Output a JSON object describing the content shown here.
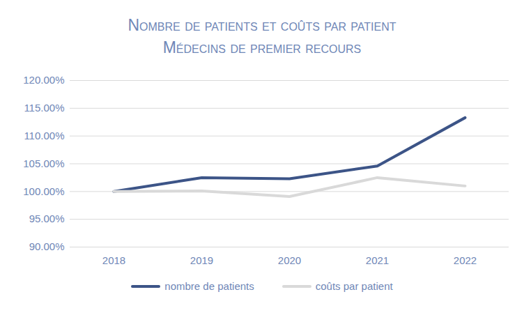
{
  "chart_data": {
    "type": "line",
    "title": "Nombre de patients et coûts par patient",
    "subtitle": "Médecins de premier recours",
    "categories": [
      "2018",
      "2019",
      "2020",
      "2021",
      "2022"
    ],
    "series": [
      {
        "name": "nombre de patients",
        "color": "#3c5487",
        "values": [
          100,
          102.5,
          102.3,
          104.6,
          113.3
        ]
      },
      {
        "name": "coûts par patient",
        "color": "#d9d9d9",
        "values": [
          100,
          100.1,
          99.1,
          102.5,
          101.0
        ]
      }
    ],
    "ylim": [
      90,
      120
    ],
    "yticks": [
      {
        "value": 90,
        "label": "90.00%"
      },
      {
        "value": 95,
        "label": "95.00%"
      },
      {
        "value": 100,
        "label": "100.00%"
      },
      {
        "value": 105,
        "label": "105.00%"
      },
      {
        "value": 110,
        "label": "110.00%"
      },
      {
        "value": 115,
        "label": "115.00%"
      },
      {
        "value": 120,
        "label": "120.00%"
      }
    ],
    "grid": true,
    "legend": "bottom"
  }
}
